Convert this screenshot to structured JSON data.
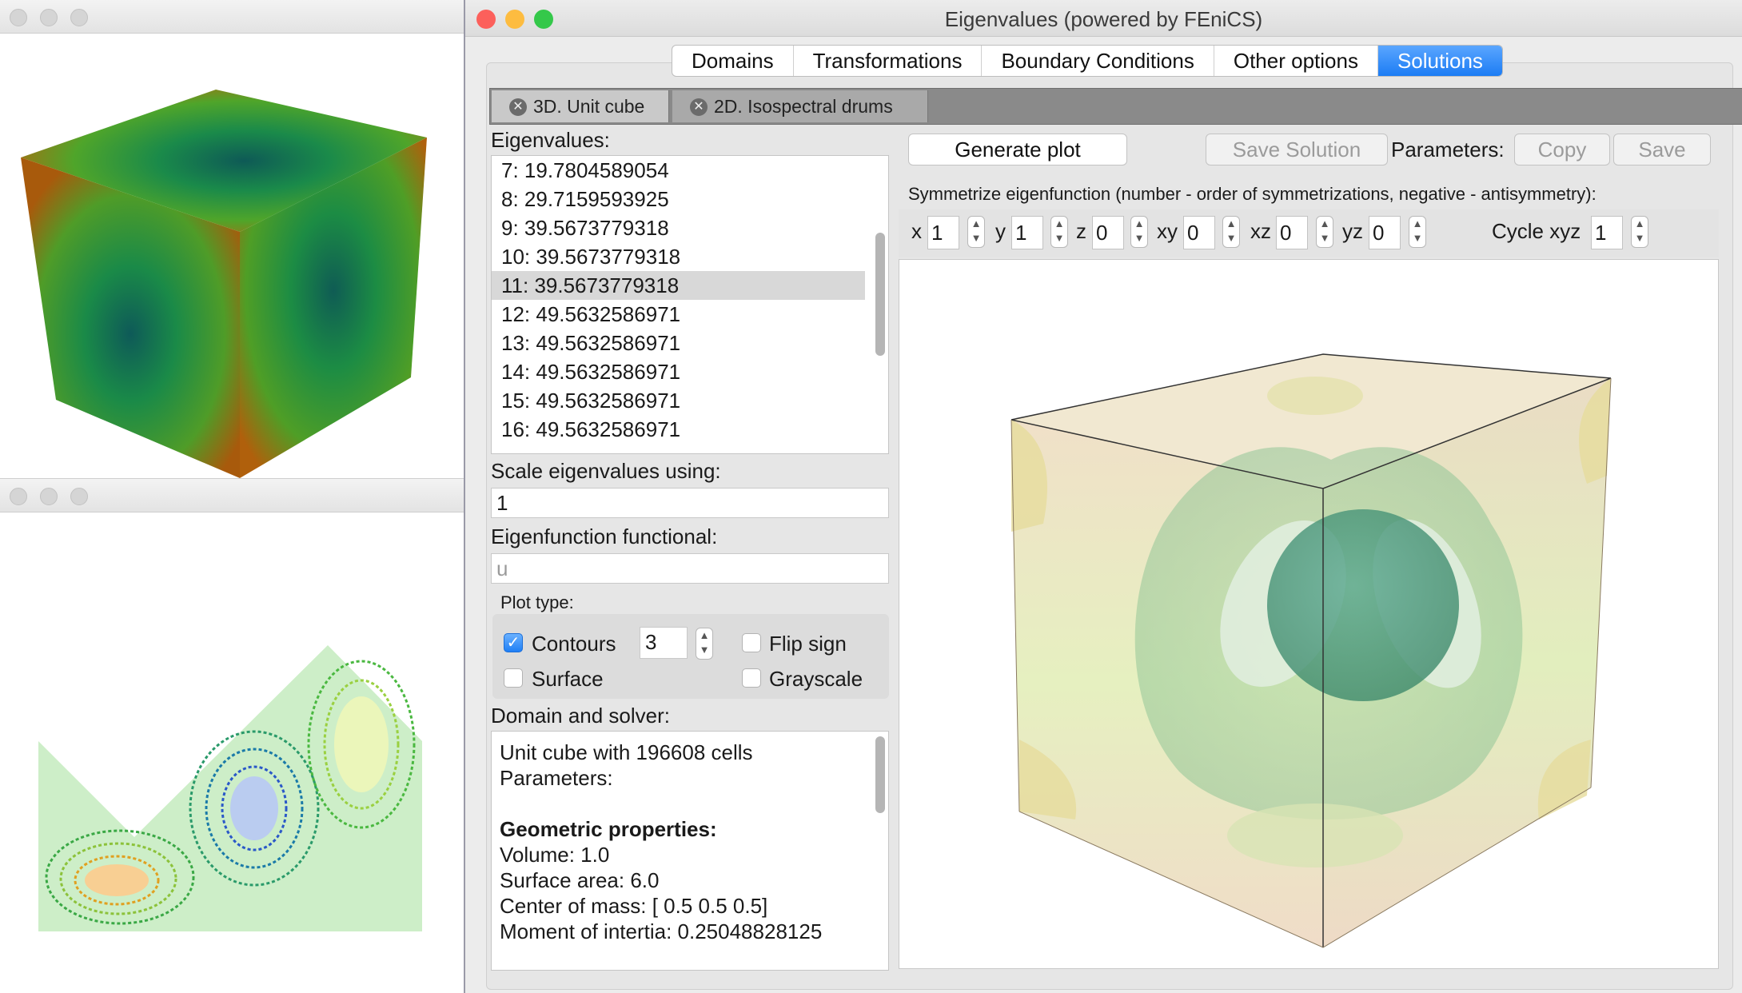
{
  "window": {
    "title": "Eigenvalues (powered by FEniCS)"
  },
  "top_tabs": [
    {
      "label": "Domains"
    },
    {
      "label": "Transformations"
    },
    {
      "label": "Boundary Conditions"
    },
    {
      "label": "Other options"
    },
    {
      "label": "Solutions",
      "active": true
    }
  ],
  "doc_tabs": [
    {
      "label": "3D. Unit cube",
      "active": true
    },
    {
      "label": "2D. Isospectral drums"
    }
  ],
  "eigenvalues": {
    "label": "Eigenvalues:",
    "rows": [
      "7: 19.7804589054",
      "8: 29.7159593925",
      "9: 39.5673779318",
      "10: 39.5673779318",
      "11: 39.5673779318",
      "12: 49.5632586971",
      "13: 49.5632586971",
      "14: 49.5632586971",
      "15: 49.5632586971",
      "16: 49.5632586971"
    ],
    "selected_index": 4
  },
  "scale": {
    "label": "Scale eigenvalues using:",
    "value": "1"
  },
  "functional": {
    "label": "Eigenfunction functional:",
    "placeholder": "u"
  },
  "plot_type": {
    "label": "Plot type:",
    "contours_label": "Contours",
    "contours_checked": true,
    "contours_value": "3",
    "surface_label": "Surface",
    "flip_label": "Flip sign",
    "grayscale_label": "Grayscale"
  },
  "domain_solver": {
    "label": "Domain and solver:",
    "lines": [
      {
        "text": "Unit cube with 196608 cells",
        "bold": false
      },
      {
        "text": "Parameters:",
        "bold": false
      },
      {
        "text": "",
        "bold": false
      },
      {
        "text": "Geometric properties:",
        "bold": true
      },
      {
        "text": "Volume: 1.0",
        "bold": false
      },
      {
        "text": "Surface area: 6.0",
        "bold": false
      },
      {
        "text": "Center of mass: [ 0.5  0.5  0.5]",
        "bold": false
      },
      {
        "text": "Moment of intertia: 0.25048828125",
        "bold": false
      }
    ]
  },
  "toolbar": {
    "generate": "Generate plot",
    "save_solution": "Save Solution",
    "parameters": "Parameters:",
    "copy": "Copy",
    "save": "Save"
  },
  "symmetrize": {
    "label": "Symmetrize eigenfunction (number - order of symmetrizations, negative - antisymmetry):",
    "fields": [
      {
        "name": "x",
        "value": "1"
      },
      {
        "name": "y",
        "value": "1"
      },
      {
        "name": "z",
        "value": "0"
      },
      {
        "name": "xy",
        "value": "0"
      },
      {
        "name": "xz",
        "value": "0"
      },
      {
        "name": "yz",
        "value": "0"
      }
    ],
    "cycle_label": "Cycle xyz",
    "cycle_value": "1"
  },
  "colors": {
    "close": "#fc605b",
    "minimize": "#fdbc40",
    "zoom": "#34c84a",
    "accent": "#1c7cf4"
  }
}
